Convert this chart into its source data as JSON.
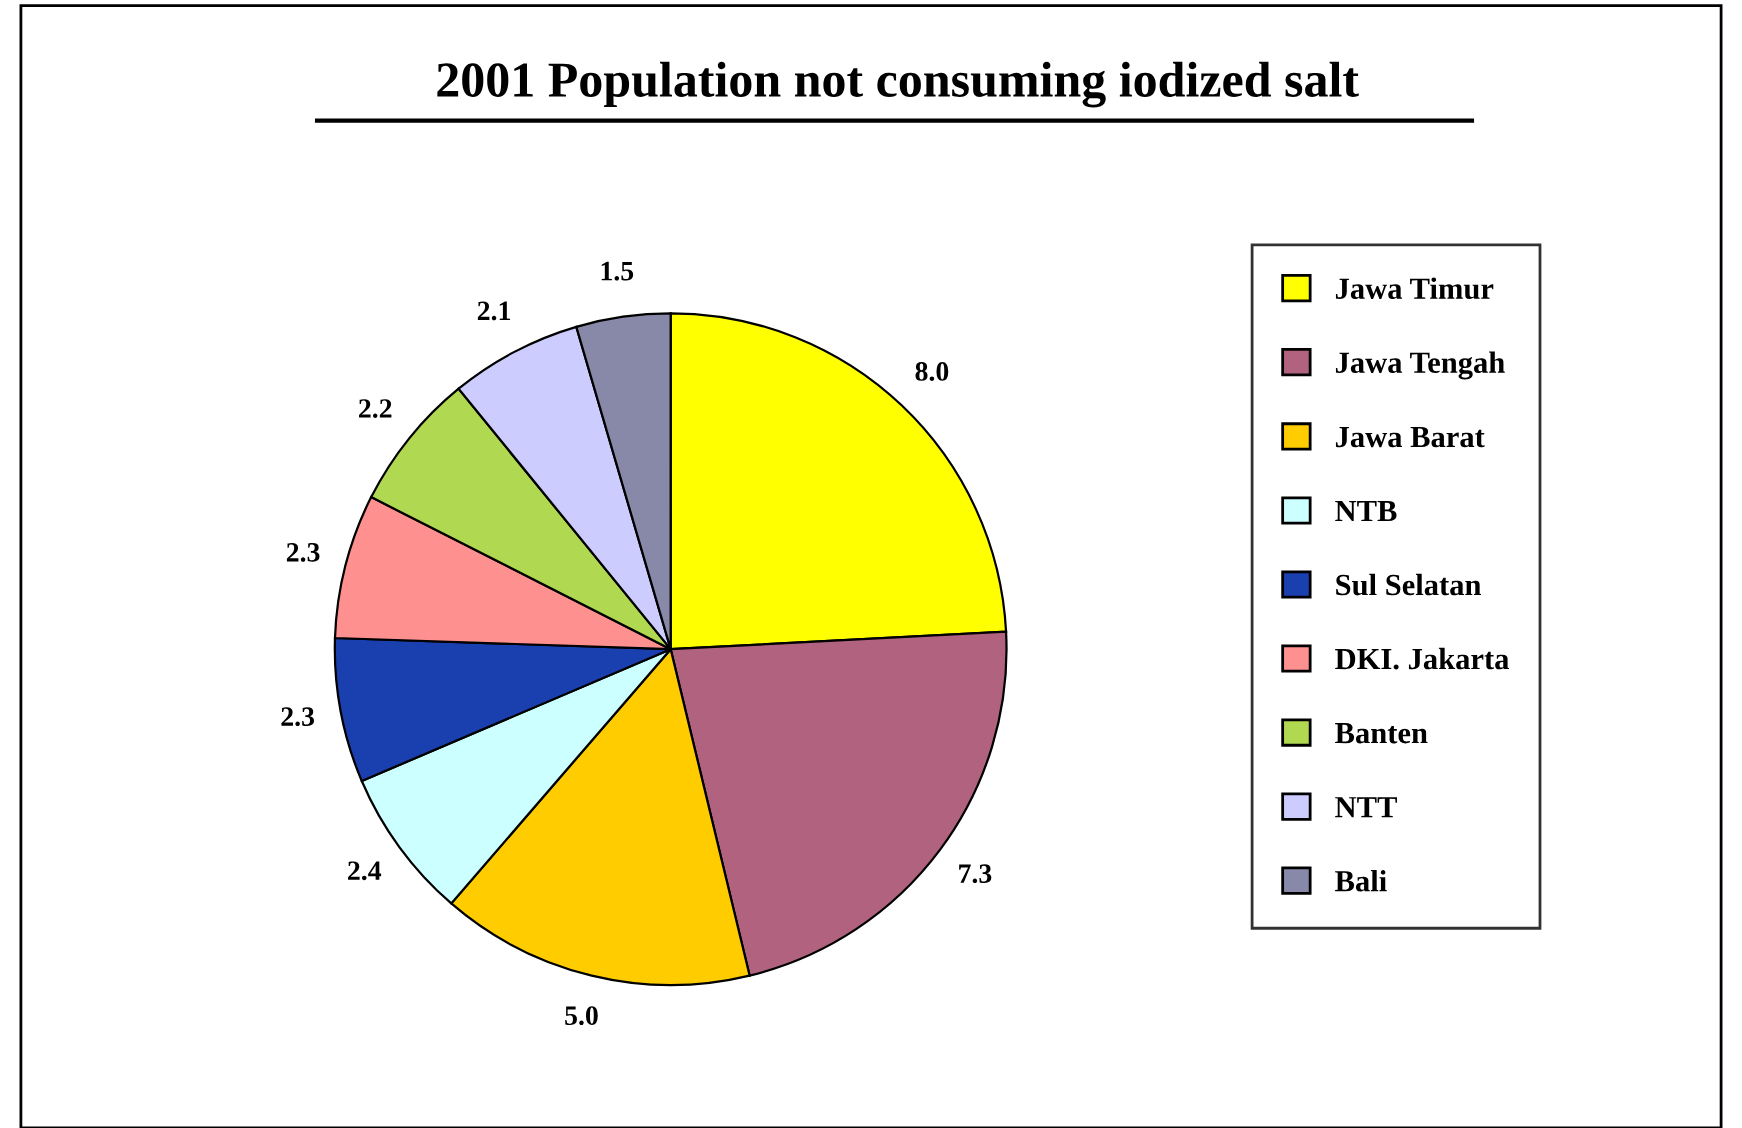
{
  "chart_data": {
    "type": "pie",
    "title": "2001 Population not consuming iodized salt",
    "categories": [
      "Jawa Timur",
      "Jawa Tengah",
      "Jawa Barat",
      "NTB",
      "Sul Selatan",
      "DKI. Jakarta",
      "Banten",
      "NTT",
      "Bali"
    ],
    "values": [
      8.0,
      7.3,
      5.0,
      2.4,
      2.3,
      2.3,
      2.2,
      2.1,
      1.5
    ],
    "colors": [
      "#ffff00",
      "#b0627f",
      "#ffcc00",
      "#ccffff",
      "#1a40b0",
      "#ff9090",
      "#b0d850",
      "#ccccff",
      "#8888a8"
    ],
    "value_labels": [
      "8.0",
      "7.3",
      "5.0",
      "2.4",
      "2.3",
      "2.3",
      "2.2",
      "2.1",
      "1.5"
    ],
    "legend": "right"
  }
}
